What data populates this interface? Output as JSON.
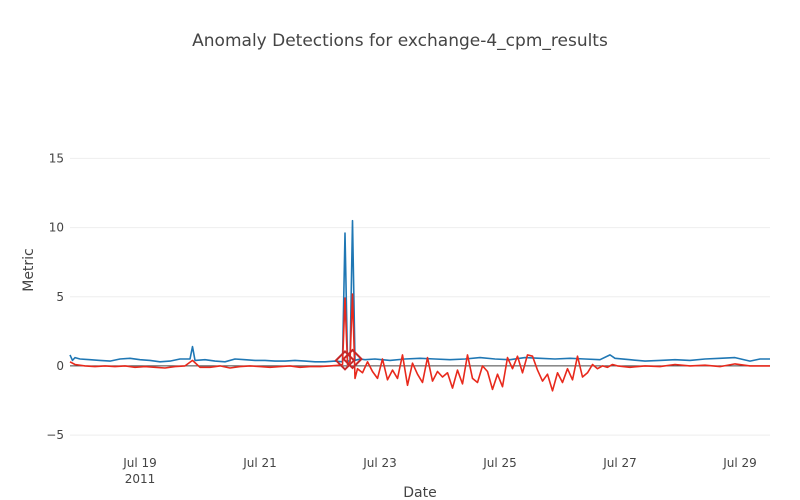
{
  "chart_data": {
    "type": "line",
    "title": "Anomaly Detections for exchange-4_cpm_results",
    "xlabel": "Date",
    "ylabel": "Metric",
    "x_range": [
      "2011-07-17T20:00",
      "2011-07-29T12:00"
    ],
    "ylim": [
      -6.8,
      18.5
    ],
    "y_ticks": [
      -5,
      0,
      5,
      10,
      15
    ],
    "x_ticks": [
      {
        "date": "2011-07-19",
        "label": "Jul 19",
        "sublabel": "2011"
      },
      {
        "date": "2011-07-21",
        "label": "Jul 21",
        "sublabel": ""
      },
      {
        "date": "2011-07-23",
        "label": "Jul 23",
        "sublabel": ""
      },
      {
        "date": "2011-07-25",
        "label": "Jul 25",
        "sublabel": ""
      },
      {
        "date": "2011-07-27",
        "label": "Jul 27",
        "sublabel": ""
      },
      {
        "date": "2011-07-29",
        "label": "Jul 29",
        "sublabel": ""
      }
    ],
    "grid": true,
    "zeroline": true,
    "legend": "none",
    "colors": {
      "series_blue": "#1f77b4",
      "series_red": "#e8291c",
      "anomaly_marker": "#c62828",
      "zeroline": "#444444",
      "grid": "#eeeeee"
    },
    "series": [
      {
        "color": "#1f77b4",
        "x": [
          "2011-07-17T20:00",
          "2011-07-17T21:00",
          "2011-07-17T22:00",
          "2011-07-18T00:00",
          "2011-07-18T04:00",
          "2011-07-18T08:00",
          "2011-07-18T12:00",
          "2011-07-18T16:00",
          "2011-07-18T20:00",
          "2011-07-19T00:00",
          "2011-07-19T04:00",
          "2011-07-19T08:00",
          "2011-07-19T12:00",
          "2011-07-19T16:00",
          "2011-07-19T20:00",
          "2011-07-19T21:00",
          "2011-07-19T22:00",
          "2011-07-20T02:00",
          "2011-07-20T06:00",
          "2011-07-20T10:00",
          "2011-07-20T14:00",
          "2011-07-20T18:00",
          "2011-07-20T22:00",
          "2011-07-21T02:00",
          "2011-07-21T06:00",
          "2011-07-21T10:00",
          "2011-07-21T14:00",
          "2011-07-21T18:00",
          "2011-07-21T22:00",
          "2011-07-22T02:00",
          "2011-07-22T06:00",
          "2011-07-22T09:00",
          "2011-07-22T10:00",
          "2011-07-22T11:00",
          "2011-07-22T12:00",
          "2011-07-22T13:00",
          "2011-07-22T14:00",
          "2011-07-22T15:00",
          "2011-07-22T16:00",
          "2011-07-22T18:00",
          "2011-07-22T22:00",
          "2011-07-23T04:00",
          "2011-07-23T10:00",
          "2011-07-23T16:00",
          "2011-07-23T22:00",
          "2011-07-24T04:00",
          "2011-07-24T10:00",
          "2011-07-24T16:00",
          "2011-07-24T22:00",
          "2011-07-25T04:00",
          "2011-07-25T10:00",
          "2011-07-25T16:00",
          "2011-07-25T22:00",
          "2011-07-26T04:00",
          "2011-07-26T10:00",
          "2011-07-26T16:00",
          "2011-07-26T20:00",
          "2011-07-26T22:00",
          "2011-07-27T04:00",
          "2011-07-27T10:00",
          "2011-07-27T16:00",
          "2011-07-27T22:00",
          "2011-07-28T04:00",
          "2011-07-28T10:00",
          "2011-07-28T16:00",
          "2011-07-28T22:00",
          "2011-07-29T04:00",
          "2011-07-29T08:00",
          "2011-07-29T12:00"
        ],
        "y": [
          0.8,
          0.4,
          0.6,
          0.5,
          0.45,
          0.4,
          0.35,
          0.5,
          0.55,
          0.45,
          0.4,
          0.3,
          0.35,
          0.5,
          0.5,
          1.4,
          0.4,
          0.45,
          0.35,
          0.3,
          0.5,
          0.45,
          0.4,
          0.4,
          0.35,
          0.35,
          0.4,
          0.35,
          0.3,
          0.3,
          0.35,
          0.3,
          9.6,
          0.4,
          0.3,
          10.5,
          0.4,
          0.45,
          0.5,
          0.45,
          0.5,
          0.4,
          0.5,
          0.55,
          0.5,
          0.45,
          0.5,
          0.6,
          0.5,
          0.45,
          0.6,
          0.55,
          0.5,
          0.55,
          0.5,
          0.45,
          0.8,
          0.55,
          0.45,
          0.35,
          0.4,
          0.45,
          0.4,
          0.5,
          0.55,
          0.6,
          0.35,
          0.5,
          0.5
        ]
      },
      {
        "color": "#e8291c",
        "x": [
          "2011-07-17T20:00",
          "2011-07-17T22:00",
          "2011-07-18T02:00",
          "2011-07-18T06:00",
          "2011-07-18T10:00",
          "2011-07-18T14:00",
          "2011-07-18T18:00",
          "2011-07-18T22:00",
          "2011-07-19T02:00",
          "2011-07-19T06:00",
          "2011-07-19T10:00",
          "2011-07-19T14:00",
          "2011-07-19T18:00",
          "2011-07-19T21:00",
          "2011-07-20T00:00",
          "2011-07-20T04:00",
          "2011-07-20T08:00",
          "2011-07-20T12:00",
          "2011-07-20T16:00",
          "2011-07-20T20:00",
          "2011-07-21T00:00",
          "2011-07-21T04:00",
          "2011-07-21T08:00",
          "2011-07-21T12:00",
          "2011-07-21T16:00",
          "2011-07-21T20:00",
          "2011-07-22T00:00",
          "2011-07-22T04:00",
          "2011-07-22T08:00",
          "2011-07-22T09:00",
          "2011-07-22T10:00",
          "2011-07-22T11:00",
          "2011-07-22T12:00",
          "2011-07-22T13:00",
          "2011-07-22T14:00",
          "2011-07-22T15:00",
          "2011-07-22T17:00",
          "2011-07-22T19:00",
          "2011-07-22T21:00",
          "2011-07-22T23:00",
          "2011-07-23T01:00",
          "2011-07-23T03:00",
          "2011-07-23T05:00",
          "2011-07-23T07:00",
          "2011-07-23T09:00",
          "2011-07-23T11:00",
          "2011-07-23T13:00",
          "2011-07-23T15:00",
          "2011-07-23T17:00",
          "2011-07-23T19:00",
          "2011-07-23T21:00",
          "2011-07-23T23:00",
          "2011-07-24T01:00",
          "2011-07-24T03:00",
          "2011-07-24T05:00",
          "2011-07-24T07:00",
          "2011-07-24T09:00",
          "2011-07-24T11:00",
          "2011-07-24T13:00",
          "2011-07-24T15:00",
          "2011-07-24T17:00",
          "2011-07-24T19:00",
          "2011-07-24T21:00",
          "2011-07-24T23:00",
          "2011-07-25T01:00",
          "2011-07-25T03:00",
          "2011-07-25T05:00",
          "2011-07-25T07:00",
          "2011-07-25T09:00",
          "2011-07-25T11:00",
          "2011-07-25T13:00",
          "2011-07-25T15:00",
          "2011-07-25T17:00",
          "2011-07-25T19:00",
          "2011-07-25T21:00",
          "2011-07-25T23:00",
          "2011-07-26T01:00",
          "2011-07-26T03:00",
          "2011-07-26T05:00",
          "2011-07-26T07:00",
          "2011-07-26T09:00",
          "2011-07-26T11:00",
          "2011-07-26T13:00",
          "2011-07-26T15:00",
          "2011-07-26T17:00",
          "2011-07-26T19:00",
          "2011-07-26T21:00",
          "2011-07-26T23:00",
          "2011-07-27T04:00",
          "2011-07-27T10:00",
          "2011-07-27T16:00",
          "2011-07-27T22:00",
          "2011-07-28T04:00",
          "2011-07-28T10:00",
          "2011-07-28T16:00",
          "2011-07-28T22:00",
          "2011-07-29T04:00",
          "2011-07-29T12:00"
        ],
        "y": [
          0.3,
          0.1,
          0.0,
          -0.05,
          0.0,
          -0.05,
          0.0,
          -0.1,
          -0.05,
          -0.1,
          -0.15,
          -0.05,
          0.0,
          0.4,
          -0.1,
          -0.1,
          0.0,
          -0.15,
          -0.05,
          0.0,
          -0.05,
          -0.1,
          -0.05,
          0.0,
          -0.1,
          -0.05,
          -0.05,
          0.0,
          0.05,
          0.1,
          4.9,
          0.1,
          0.3,
          5.2,
          -0.9,
          -0.2,
          -0.5,
          0.3,
          -0.4,
          -0.9,
          0.5,
          -1.0,
          -0.3,
          -0.9,
          0.8,
          -1.4,
          0.2,
          -0.6,
          -1.2,
          0.6,
          -1.1,
          -0.4,
          -0.8,
          -0.5,
          -1.6,
          -0.3,
          -1.3,
          0.8,
          -0.9,
          -1.2,
          0.0,
          -0.4,
          -1.7,
          -0.6,
          -1.5,
          0.6,
          -0.2,
          0.7,
          -0.5,
          0.8,
          0.7,
          -0.3,
          -1.1,
          -0.6,
          -1.8,
          -0.5,
          -1.2,
          -0.2,
          -1.0,
          0.7,
          -0.8,
          -0.5,
          0.1,
          -0.2,
          0.0,
          -0.1,
          0.1,
          0.0,
          -0.1,
          0.0,
          -0.05,
          0.1,
          0.0,
          0.05,
          -0.05,
          0.15,
          0.0,
          0.0
        ]
      }
    ],
    "anomalies": {
      "color": "#c62828",
      "x": [
        "2011-07-22T10:00",
        "2011-07-22T13:00"
      ],
      "y": [
        0.4,
        0.5
      ]
    }
  }
}
